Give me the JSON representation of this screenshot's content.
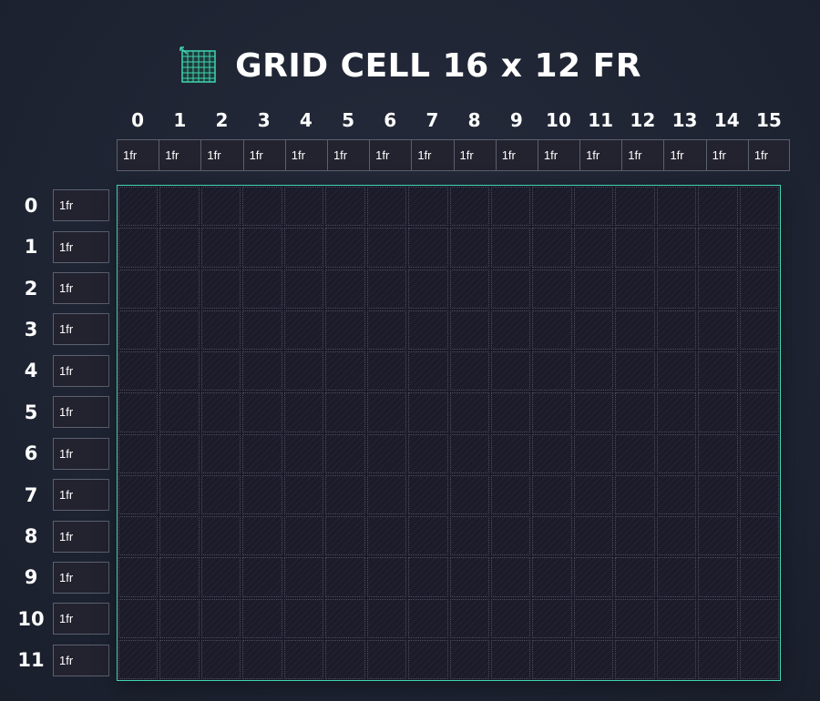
{
  "header": {
    "title": "GRID CELL 16 x 12 FR",
    "icon": "grid-icon",
    "accent_color": "#3fd6b2"
  },
  "columns": [
    {
      "label": "0",
      "value": "1fr"
    },
    {
      "label": "1",
      "value": "1fr"
    },
    {
      "label": "2",
      "value": "1fr"
    },
    {
      "label": "3",
      "value": "1fr"
    },
    {
      "label": "4",
      "value": "1fr"
    },
    {
      "label": "5",
      "value": "1fr"
    },
    {
      "label": "6",
      "value": "1fr"
    },
    {
      "label": "7",
      "value": "1fr"
    },
    {
      "label": "8",
      "value": "1fr"
    },
    {
      "label": "9",
      "value": "1fr"
    },
    {
      "label": "10",
      "value": "1fr"
    },
    {
      "label": "11",
      "value": "1fr"
    },
    {
      "label": "12",
      "value": "1fr"
    },
    {
      "label": "13",
      "value": "1fr"
    },
    {
      "label": "14",
      "value": "1fr"
    },
    {
      "label": "15",
      "value": "1fr"
    }
  ],
  "rows": [
    {
      "label": "0",
      "value": "1fr"
    },
    {
      "label": "1",
      "value": "1fr"
    },
    {
      "label": "2",
      "value": "1fr"
    },
    {
      "label": "3",
      "value": "1fr"
    },
    {
      "label": "4",
      "value": "1fr"
    },
    {
      "label": "5",
      "value": "1fr"
    },
    {
      "label": "6",
      "value": "1fr"
    },
    {
      "label": "7",
      "value": "1fr"
    },
    {
      "label": "8",
      "value": "1fr"
    },
    {
      "label": "9",
      "value": "1fr"
    },
    {
      "label": "10",
      "value": "1fr"
    },
    {
      "label": "11",
      "value": "1fr"
    }
  ]
}
